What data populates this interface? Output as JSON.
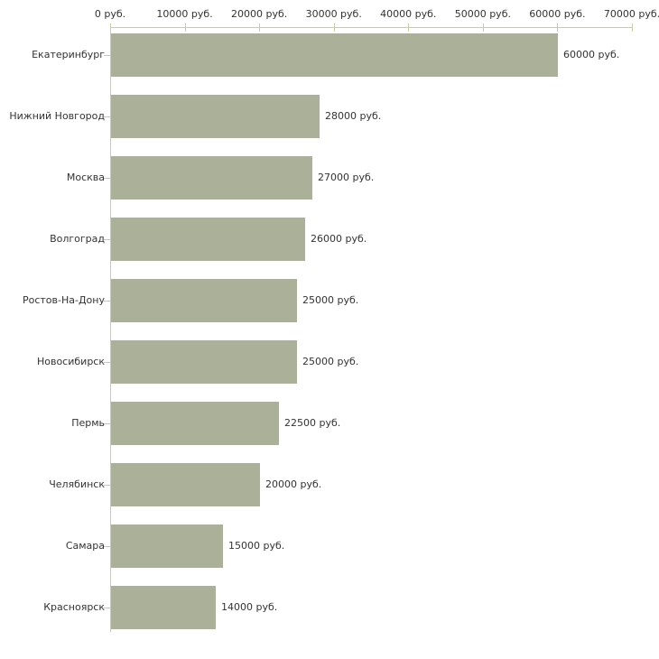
{
  "chart_data": {
    "type": "bar",
    "orientation": "horizontal",
    "title": "",
    "xlabel": "",
    "ylabel": "",
    "grid": false,
    "legend": "none",
    "categories": [
      "Екатеринбург",
      "Нижний Новгород",
      "Москва",
      "Волгоград",
      "Ростов-На-Дону",
      "Новосибирск",
      "Пермь",
      "Челябинск",
      "Самара",
      "Красноярск"
    ],
    "values": [
      60000,
      28000,
      27000,
      26000,
      25000,
      25000,
      22500,
      20000,
      15000,
      14000
    ],
    "value_labels": [
      "60000 руб.",
      "28000 руб.",
      "27000 руб.",
      "26000 руб.",
      "25000 руб.",
      "25000 руб.",
      "22500 руб.",
      "20000 руб.",
      "15000 руб.",
      "14000 руб."
    ],
    "xlim": [
      0,
      70000
    ],
    "x_ticks": [
      0,
      10000,
      20000,
      30000,
      40000,
      50000,
      60000,
      70000
    ],
    "x_tick_labels": [
      "0 руб.",
      "10000 руб.",
      "20000 руб.",
      "30000 руб.",
      "40000 руб.",
      "50000 руб.",
      "60000 руб.",
      "70000 руб."
    ]
  },
  "colors": {
    "bar": "#abb098",
    "axis_line": "#c9c9c3",
    "tick": "#cbcb9e",
    "text": "#333333",
    "background": "#ffffff"
  }
}
